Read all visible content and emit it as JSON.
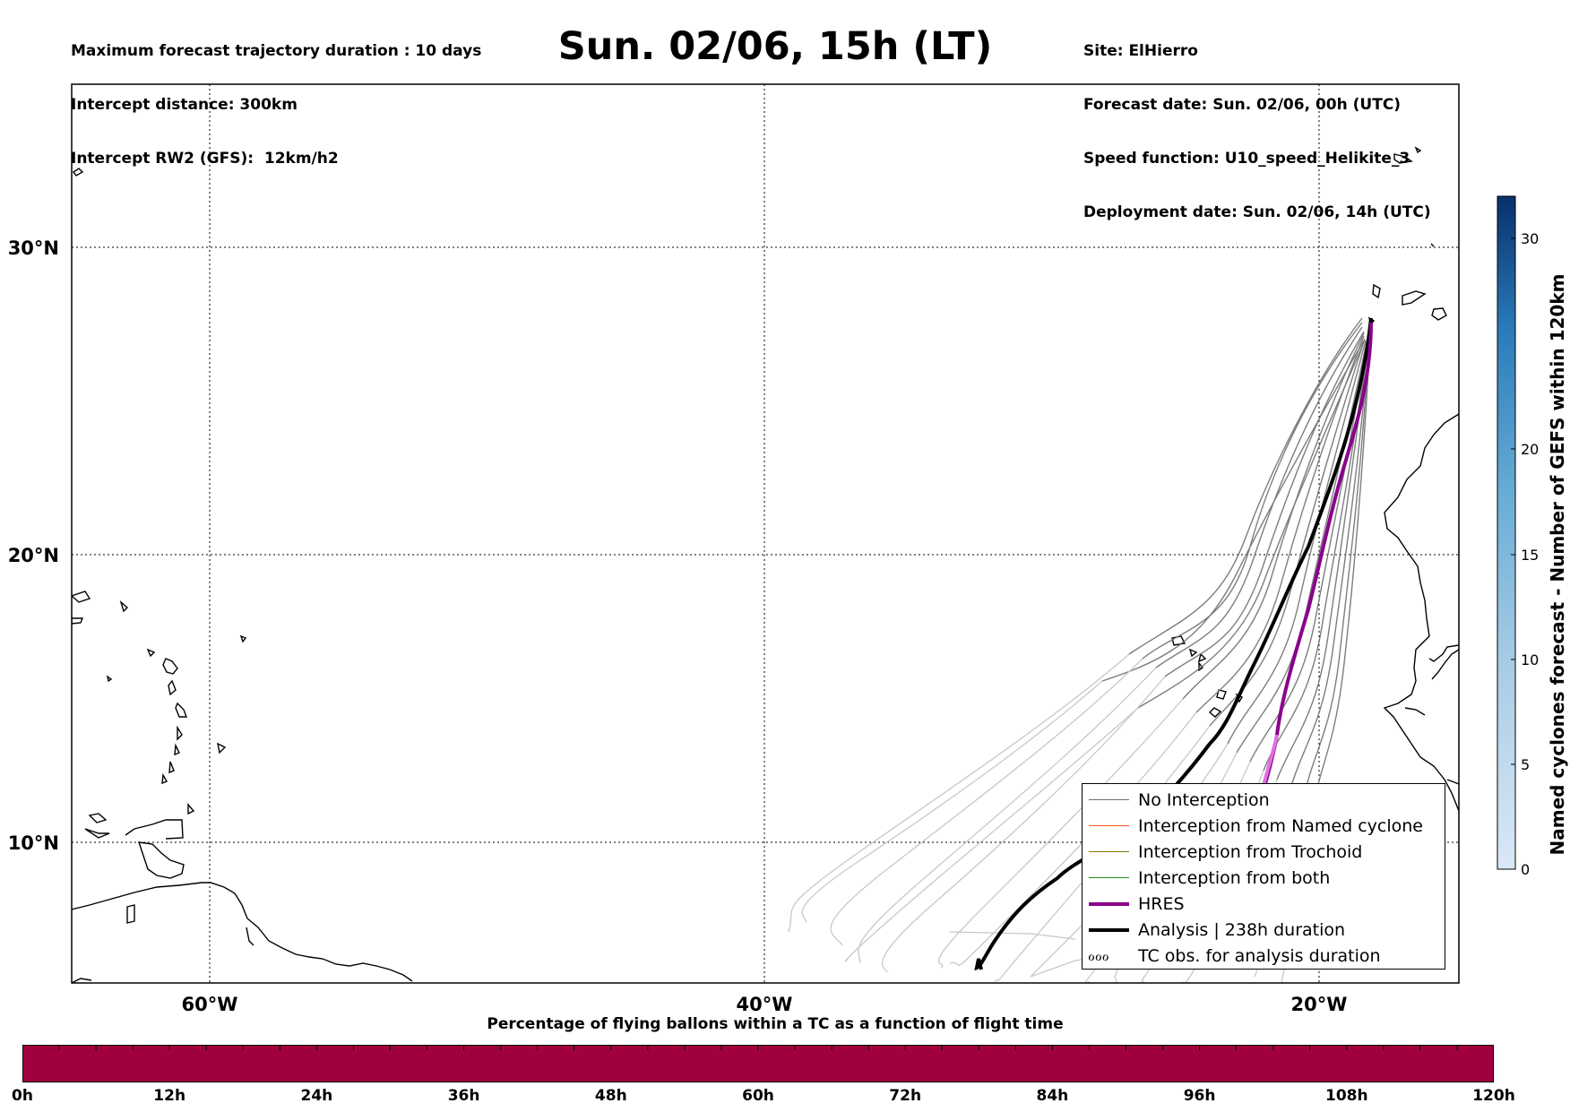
{
  "info_left": [
    "Maximum forecast trajectory duration : 10 days",
    "Intercept distance: 300km",
    "Intercept RW2 (GFS):  12km/h2"
  ],
  "title": "Sun. 02/06, 15h (LT)",
  "info_right": [
    "Site: ElHierro",
    "Forecast date: Sun. 02/06, 00h (UTC)",
    "Speed function: U10_speed_Helikite_3",
    "Deployment date: Sun. 02/06, 14h (UTC)"
  ],
  "map": {
    "lon_labels": [
      "60°W",
      "40°W",
      "20°W"
    ],
    "lat_labels": [
      "30°N",
      "20°N",
      "10°N"
    ],
    "grid": "dotted",
    "colors": {
      "no_interception": "#707070",
      "named_cyclone": "#ff5a1f",
      "trochoid": "#808000",
      "both": "#1f8f1f",
      "hres": "#8b008b",
      "analysis": "#000000",
      "coastline": "#000000"
    }
  },
  "legend": {
    "items": [
      {
        "label": "No Interception",
        "color": "#707070"
      },
      {
        "label": "Interception from Named cyclone",
        "color": "#ff5a1f"
      },
      {
        "label": "Interception from Trochoid",
        "color": "#808000"
      },
      {
        "label": "Interception from both",
        "color": "#1f8f1f"
      },
      {
        "label": "HRES",
        "color": "#8b008b"
      },
      {
        "label": "Analysis | 238h duration",
        "color": "#000000"
      },
      {
        "label": "TC obs. for analysis duration",
        "glyph": "ℴℴℴ"
      }
    ]
  },
  "colorbar": {
    "label": "Named cyclones forecast - Number of GEFS within 120km",
    "ticks": [
      "0",
      "5",
      "10",
      "15",
      "20",
      "30"
    ]
  },
  "timebar": {
    "title": "Percentage of flying ballons within a TC as a function of flight time",
    "ticks": [
      "0h",
      "12h",
      "24h",
      "36h",
      "48h",
      "60h",
      "72h",
      "84h",
      "96h",
      "108h",
      "120h"
    ],
    "fill_color": "#a0003e"
  }
}
